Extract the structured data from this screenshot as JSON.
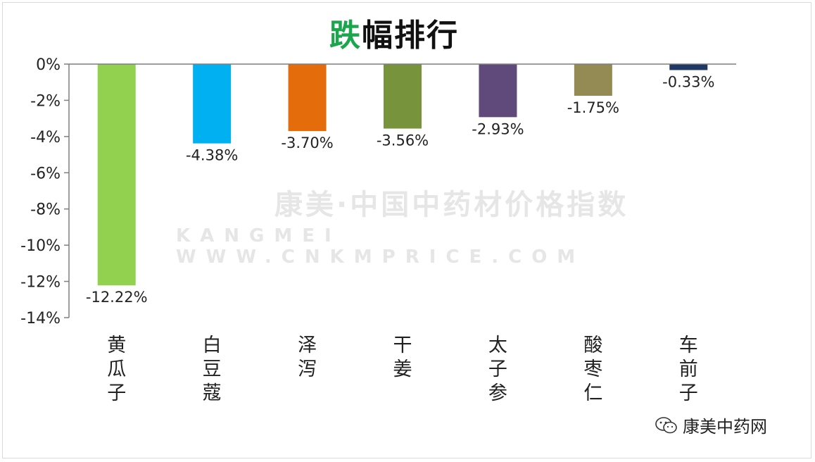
{
  "title": {
    "accent": "跌",
    "rest": "幅排行"
  },
  "watermark": {
    "line1": "康美·中国中药材价格指数",
    "line2": "KANGMEI WWW.CNKMPRICE.COM"
  },
  "credit": {
    "text": "康美中药网",
    "icon": "wechat-icon"
  },
  "chart_data": {
    "type": "bar",
    "categories": [
      "黄瓜子",
      "白豆蔻",
      "泽泻",
      "干姜",
      "太子参",
      "酸枣仁",
      "车前子"
    ],
    "values": [
      -12.22,
      -4.38,
      -3.7,
      -3.56,
      -2.93,
      -1.75,
      -0.33
    ],
    "data_labels": [
      "-12.22%",
      "-4.38%",
      "-3.70%",
      "-3.56%",
      "-2.93%",
      "-1.75%",
      "-0.33%"
    ],
    "colors": [
      "#92d050",
      "#00b0f0",
      "#e46c0a",
      "#77933c",
      "#604a7b",
      "#948a54",
      "#1f3864"
    ],
    "y_ticks": [
      0,
      -2,
      -4,
      -6,
      -8,
      -10,
      -12,
      -14
    ],
    "y_tick_labels": [
      "0%",
      "-2%",
      "-4%",
      "-6%",
      "-8%",
      "-10%",
      "-12%",
      "-14%"
    ],
    "ylim": [
      -14,
      0
    ],
    "title": "跌幅排行",
    "xlabel": "",
    "ylabel": "",
    "grid": false,
    "legend": "none"
  }
}
